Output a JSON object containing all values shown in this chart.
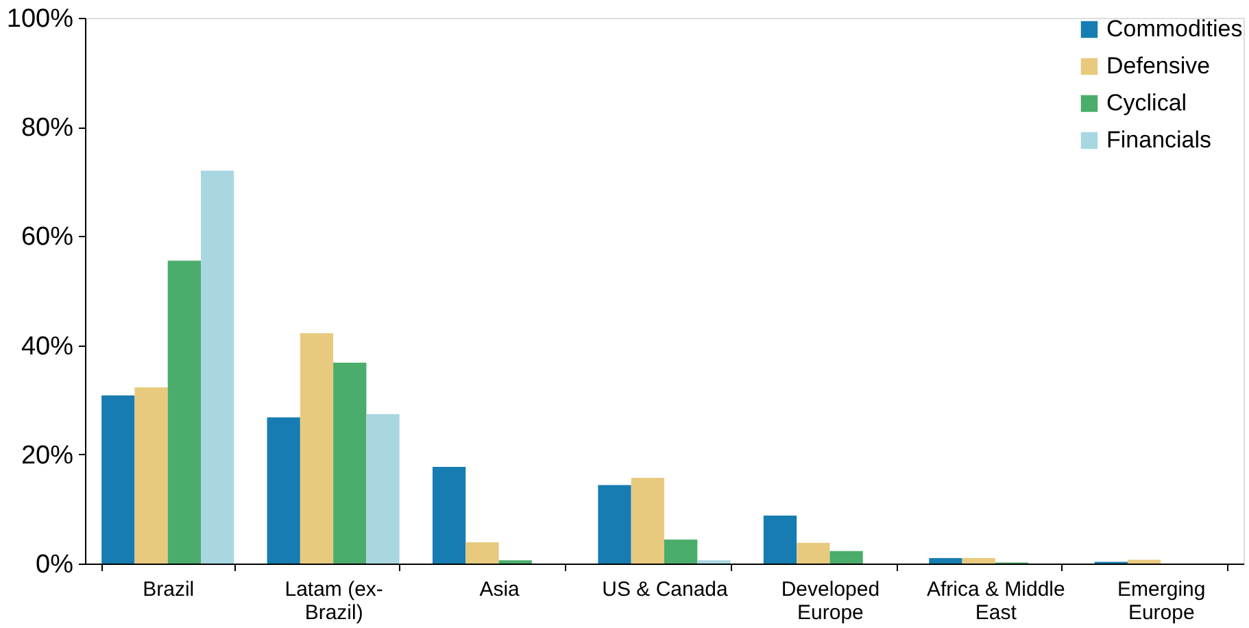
{
  "chart_data": {
    "type": "bar",
    "categories": [
      "Brazil",
      "Latam (ex-\nBrazil)",
      "Asia",
      "US & Canada",
      "Developed\nEurope",
      "Africa & Middle\nEast",
      "Emerging\nEurope"
    ],
    "series": [
      {
        "name": "Commodities",
        "color": "#167cb1",
        "values": [
          30.8,
          26.8,
          17.7,
          14.4,
          8.8,
          1.0,
          0.3
        ]
      },
      {
        "name": "Defensive",
        "color": "#e8ca7f",
        "values": [
          32.3,
          42.2,
          3.9,
          15.7,
          3.8,
          1.0,
          0.7
        ]
      },
      {
        "name": "Cyclical",
        "color": "#4aad6b",
        "values": [
          55.5,
          36.8,
          0.6,
          4.4,
          2.3,
          0.2,
          null
        ]
      },
      {
        "name": "Financials",
        "color": "#a9d7e1",
        "values": [
          72.0,
          27.4,
          null,
          0.6,
          null,
          null,
          null
        ]
      }
    ],
    "ylim": [
      0,
      100
    ],
    "yticks": [
      {
        "value": 0,
        "label": "0%"
      },
      {
        "value": 20,
        "label": "20%"
      },
      {
        "value": 40,
        "label": "40%"
      },
      {
        "value": 60,
        "label": "60%"
      },
      {
        "value": 80,
        "label": "80%"
      },
      {
        "value": 100,
        "label": "100%"
      }
    ],
    "grid": false,
    "legend": "top right"
  }
}
